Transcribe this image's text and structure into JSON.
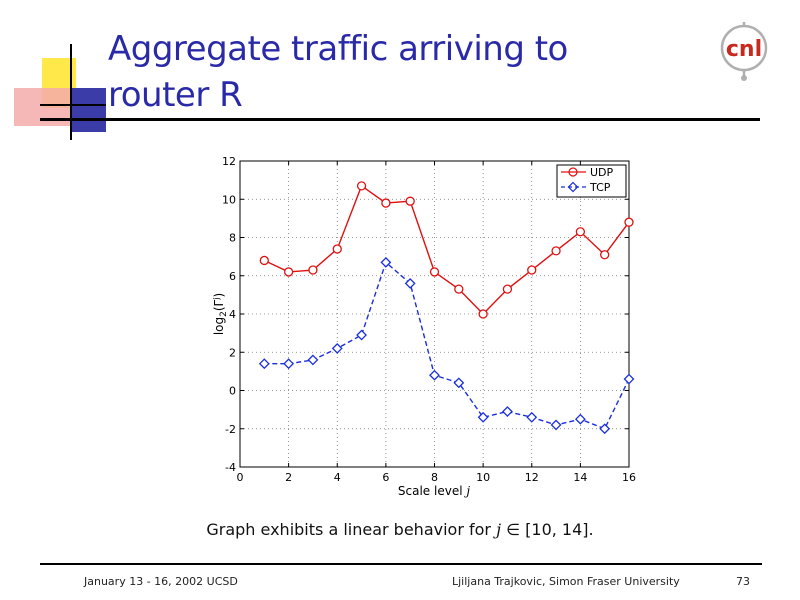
{
  "slide": {
    "title": "Aggregate traffic arriving to router R",
    "caption_pre": "Graph exhibits a linear behavior for ",
    "caption_var": "j",
    "caption_post": " ∈ [10, 14].",
    "logo_text": "cnl"
  },
  "footer": {
    "left": "January 13 - 16, 2002 UCSD",
    "center": "Ljiljana Trajkovic, Simon Fraser University",
    "page": "73"
  },
  "colors": {
    "title": "#2a2aa8",
    "udp": "#e01010",
    "tcp": "#1a2ee0",
    "logo": "#c8281e"
  },
  "chart_data": {
    "type": "line",
    "title": "",
    "xlabel": "Scale level j",
    "ylabel": "log2(Γj)",
    "xlim": [
      0,
      16
    ],
    "ylim": [
      -4,
      12
    ],
    "xticks": [
      0,
      2,
      4,
      6,
      8,
      10,
      12,
      14,
      16
    ],
    "yticks": [
      -4,
      -2,
      0,
      2,
      4,
      6,
      8,
      10,
      12
    ],
    "grid": true,
    "legend_position": "top-right",
    "x": [
      1,
      2,
      3,
      4,
      5,
      6,
      7,
      8,
      9,
      10,
      11,
      12,
      13,
      14,
      15,
      16
    ],
    "series": [
      {
        "name": "UDP",
        "color": "#e01010",
        "marker": "circle",
        "line": "solid",
        "values": [
          6.8,
          6.2,
          6.3,
          7.4,
          10.7,
          9.8,
          9.9,
          6.2,
          5.3,
          4.0,
          5.3,
          6.3,
          7.3,
          8.3,
          7.1,
          8.8
        ]
      },
      {
        "name": "TCP",
        "color": "#1a2ee0",
        "marker": "diamond",
        "line": "dashed",
        "values": [
          1.4,
          1.4,
          1.6,
          2.2,
          2.9,
          6.7,
          5.6,
          0.8,
          0.4,
          -1.4,
          -1.1,
          -1.4,
          -1.8,
          -1.5,
          -2.0,
          0.6
        ]
      }
    ]
  }
}
